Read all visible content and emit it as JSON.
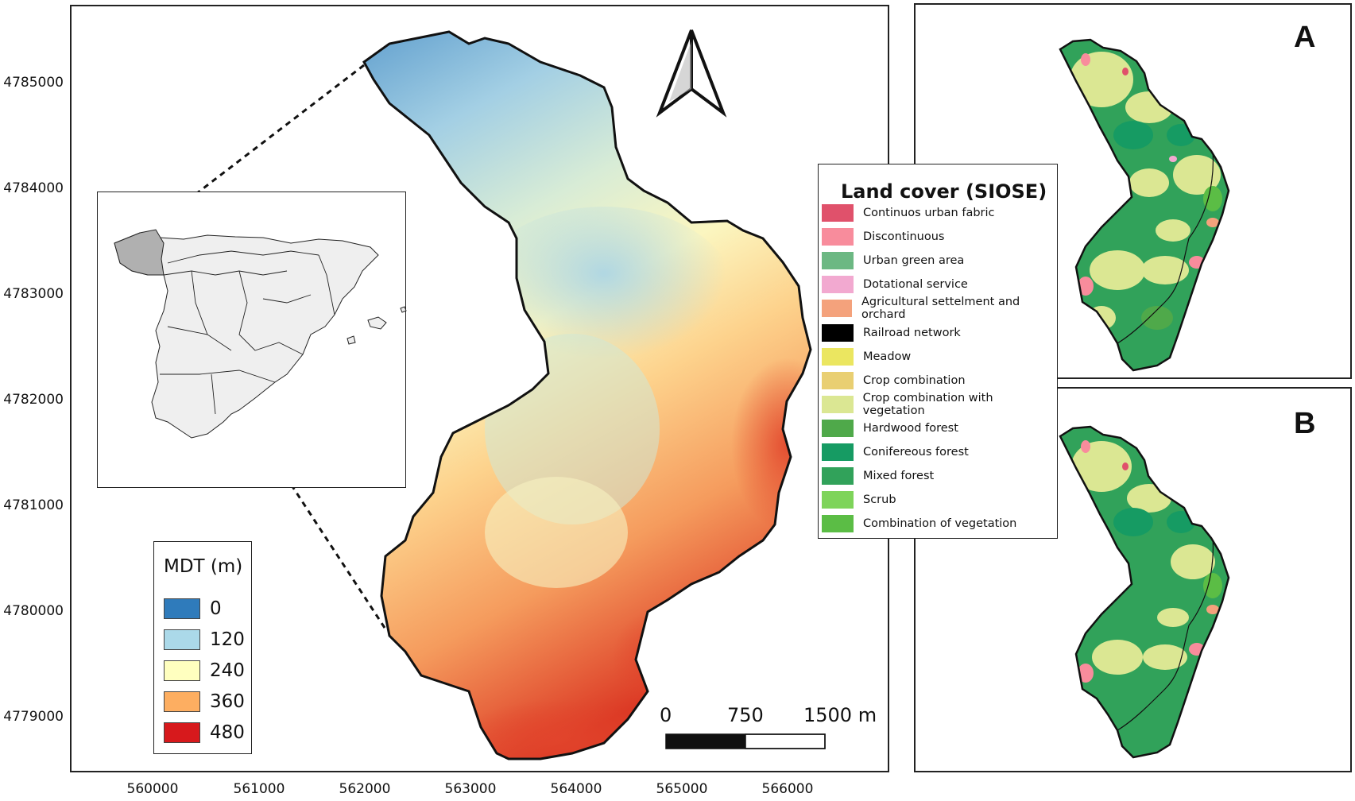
{
  "main_map": {
    "y_ticks": [
      "4785000",
      "4784000",
      "4783000",
      "4782000",
      "4781000",
      "4780000",
      "4779000"
    ],
    "x_ticks": [
      "560000",
      "561000",
      "562000",
      "563000",
      "564000",
      "565000",
      "566000"
    ],
    "scale_bar": {
      "labels": [
        "0",
        "750",
        "1500 m"
      ]
    },
    "north_arrow": "north-arrow-icon"
  },
  "mdt_legend": {
    "title": "MDT (m)",
    "items": [
      {
        "label": "0",
        "color": "#2f7bbb"
      },
      {
        "label": "120",
        "color": "#abd9e9"
      },
      {
        "label": "240",
        "color": "#ffffbf"
      },
      {
        "label": "360",
        "color": "#fdae61"
      },
      {
        "label": "480",
        "color": "#d7191c"
      }
    ]
  },
  "landcover_legend": {
    "title": "Land cover (SIOSE)",
    "items": [
      {
        "label": "Continuos urban fabric",
        "color": "#e0516b"
      },
      {
        "label": "Discontinuous",
        "color": "#f88c9c"
      },
      {
        "label": "Urban green area",
        "color": "#6cb883"
      },
      {
        "label": "Dotational service",
        "color": "#f2a9d0"
      },
      {
        "label": "Agricultural settelment and orchard",
        "color": "#f4a27c"
      },
      {
        "label": "Railroad network",
        "color": "#000000"
      },
      {
        "label": "Meadow",
        "color": "#ebe660"
      },
      {
        "label": "Crop combination",
        "color": "#e9cf72"
      },
      {
        "label": "Crop combination with vegetation",
        "color": "#dbe793"
      },
      {
        "label": "Hardwood forest",
        "color": "#4fa94a"
      },
      {
        "label": "Conifereous forest",
        "color": "#169b63"
      },
      {
        "label": "Mixed forest",
        "color": "#31a25a"
      },
      {
        "label": "Scrub",
        "color": "#7ed45a"
      },
      {
        "label": "Combination of vegetation",
        "color": "#5bbd45"
      }
    ]
  },
  "panels": {
    "a_label": "A",
    "b_label": "B"
  }
}
